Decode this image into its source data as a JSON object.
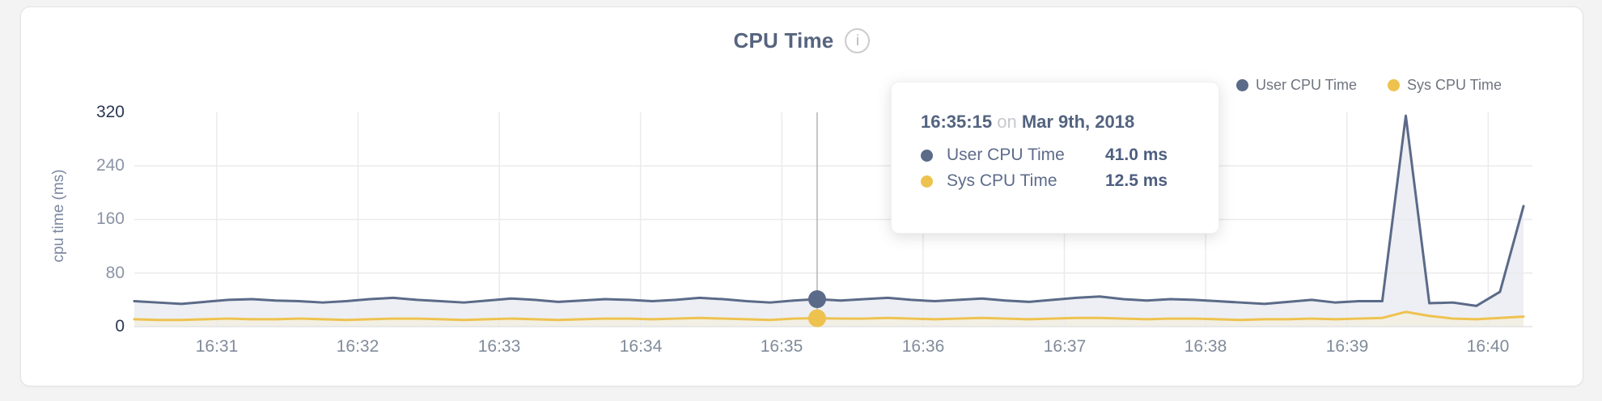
{
  "header": {
    "title": "CPU Time",
    "info_glyph": "i"
  },
  "legend": {
    "items": [
      {
        "label": "User CPU Time",
        "color": "#5b6a88"
      },
      {
        "label": "Sys CPU Time",
        "color": "#eec24e"
      }
    ]
  },
  "axes": {
    "y_label": "cpu time (ms)",
    "y_ticks": [
      "320",
      "240",
      "160",
      "80",
      "0"
    ],
    "x_ticks": [
      "16:31",
      "16:32",
      "16:33",
      "16:34",
      "16:35",
      "16:36",
      "16:37",
      "16:38",
      "16:39",
      "16:40"
    ]
  },
  "tooltip": {
    "time": "16:35:15",
    "conjunction": "on",
    "date": "Mar 9th, 2018",
    "rows": [
      {
        "label": "User CPU Time",
        "value": "41.0 ms",
        "color": "#5b6a88"
      },
      {
        "label": "Sys CPU Time",
        "value": "12.5 ms",
        "color": "#eec24e"
      }
    ]
  },
  "colors": {
    "grid": "#ebebeb",
    "baseline": "#e3e3e3",
    "crosshair": "#b4b4b4",
    "user_line": "#5b6a88",
    "user_fill": "#edeff4",
    "sys_line": "#eec24e",
    "sys_fill": "#f2efe4"
  },
  "chart_data": {
    "type": "area",
    "title": "CPU Time",
    "ylabel": "cpu time (ms)",
    "ylim": [
      0,
      320
    ],
    "y_tick_values": [
      0,
      80,
      160,
      240,
      320
    ],
    "x_tick_labels": [
      "16:31",
      "16:32",
      "16:33",
      "16:34",
      "16:35",
      "16:36",
      "16:37",
      "16:38",
      "16:39",
      "16:40"
    ],
    "grid": true,
    "legend_position": "top-right",
    "sample_interval_seconds": 10,
    "x": [
      "16:30:25",
      "16:30:35",
      "16:30:45",
      "16:30:55",
      "16:31:05",
      "16:31:15",
      "16:31:25",
      "16:31:35",
      "16:31:45",
      "16:31:55",
      "16:32:05",
      "16:32:15",
      "16:32:25",
      "16:32:35",
      "16:32:45",
      "16:32:55",
      "16:33:05",
      "16:33:15",
      "16:33:25",
      "16:33:35",
      "16:33:45",
      "16:33:55",
      "16:34:05",
      "16:34:15",
      "16:34:25",
      "16:34:35",
      "16:34:45",
      "16:34:55",
      "16:35:05",
      "16:35:15",
      "16:35:25",
      "16:35:35",
      "16:35:45",
      "16:35:55",
      "16:36:05",
      "16:36:15",
      "16:36:25",
      "16:36:35",
      "16:36:45",
      "16:36:55",
      "16:37:05",
      "16:37:15",
      "16:37:25",
      "16:37:35",
      "16:37:45",
      "16:37:55",
      "16:38:05",
      "16:38:15",
      "16:38:25",
      "16:38:35",
      "16:38:45",
      "16:38:55",
      "16:39:05",
      "16:39:15",
      "16:39:25",
      "16:39:35",
      "16:39:45",
      "16:39:55",
      "16:40:05",
      "16:40:15"
    ],
    "series": [
      {
        "name": "User CPU Time",
        "color": "#5b6a88",
        "fill": "#edeff4",
        "values": [
          38,
          36,
          34,
          37,
          40,
          41,
          39,
          38,
          36,
          38,
          41,
          43,
          40,
          38,
          36,
          39,
          42,
          40,
          37,
          39,
          41,
          40,
          38,
          40,
          43,
          41,
          38,
          36,
          39,
          41,
          39,
          41,
          43,
          40,
          38,
          40,
          42,
          39,
          37,
          40,
          43,
          45,
          41,
          39,
          41,
          40,
          38,
          36,
          34,
          37,
          40,
          36,
          38,
          38,
          315,
          35,
          36,
          31,
          52,
          180
        ]
      },
      {
        "name": "Sys CPU Time",
        "color": "#eec24e",
        "fill": "#f2efe4",
        "values": [
          11,
          10,
          10,
          11,
          12,
          11,
          11,
          12,
          11,
          10,
          11,
          12,
          12,
          11,
          10,
          11,
          12,
          11,
          10,
          11,
          12,
          12,
          11,
          12,
          13,
          12,
          11,
          10,
          12,
          12.5,
          12,
          12,
          13,
          12,
          11,
          12,
          13,
          12,
          11,
          12,
          13,
          13,
          12,
          11,
          12,
          12,
          11,
          10,
          11,
          11,
          12,
          11,
          12,
          13,
          22,
          16,
          12,
          11,
          13,
          15
        ]
      }
    ],
    "highlight": {
      "index": 29,
      "time": "16:35:15",
      "user_value_ms": 41.0,
      "sys_value_ms": 12.5
    }
  }
}
